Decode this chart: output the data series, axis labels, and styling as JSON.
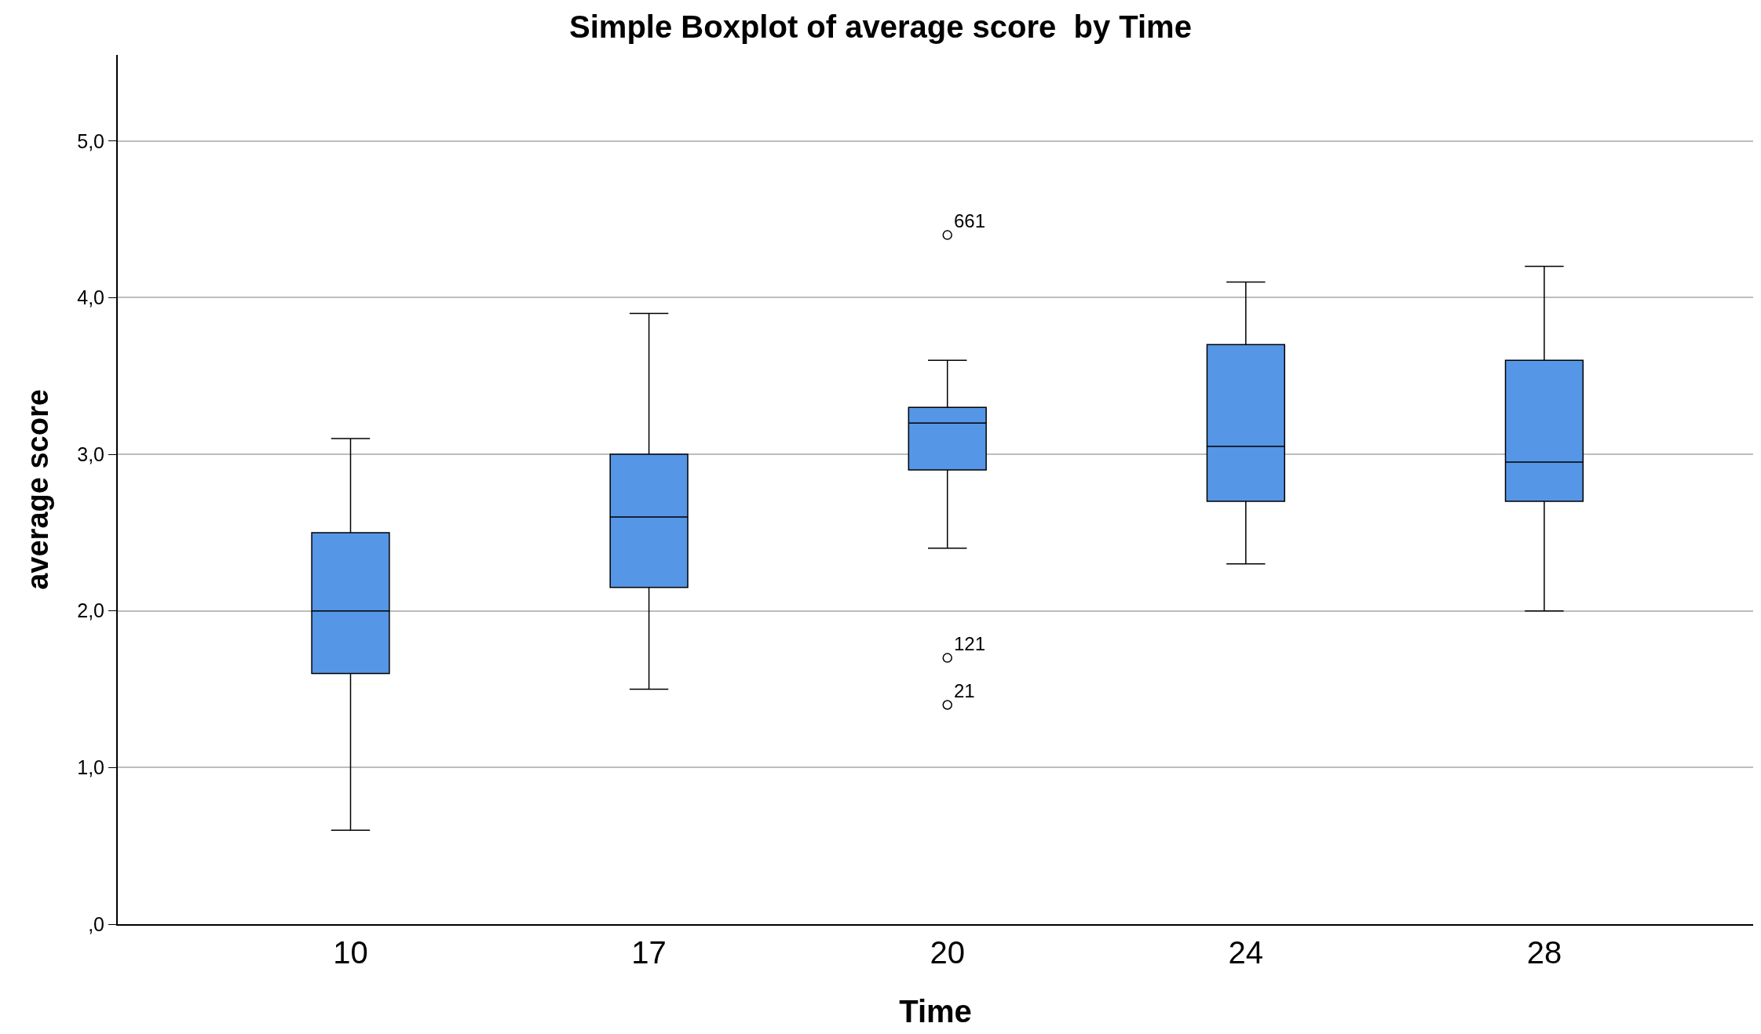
{
  "chart_data": {
    "type": "box",
    "title": "Simple Boxplot of average score  by Time",
    "xlabel": "Time",
    "ylabel": "average score",
    "categories": [
      "10",
      "17",
      "20",
      "24",
      "28"
    ],
    "boxes": [
      {
        "low": 0.6,
        "q1": 1.6,
        "median": 2.0,
        "q3": 2.5,
        "high": 3.1
      },
      {
        "low": 1.5,
        "q1": 2.15,
        "median": 2.6,
        "q3": 3.0,
        "high": 3.9
      },
      {
        "low": 2.4,
        "q1": 2.9,
        "median": 3.2,
        "q3": 3.3,
        "high": 3.6,
        "outliers": [
          4.4,
          1.7,
          1.4
        ]
      },
      {
        "low": 2.3,
        "q1": 2.7,
        "median": 3.05,
        "q3": 3.7,
        "high": 4.1
      },
      {
        "low": 2.0,
        "q1": 2.7,
        "median": 2.95,
        "q3": 3.6,
        "high": 4.2
      }
    ],
    "color": "#5596e6",
    "ylim": [
      0,
      5.55
    ],
    "yticks": [
      {
        "value": 0,
        "label": ",0"
      },
      {
        "value": 1,
        "label": "1,0"
      },
      {
        "value": 2,
        "label": "2,0"
      },
      {
        "value": 3,
        "label": "3,0"
      },
      {
        "value": 4,
        "label": "4,0"
      },
      {
        "value": 5,
        "label": "5,0"
      }
    ],
    "annotations": [
      "661",
      "121",
      "21"
    ],
    "grid": "y"
  }
}
